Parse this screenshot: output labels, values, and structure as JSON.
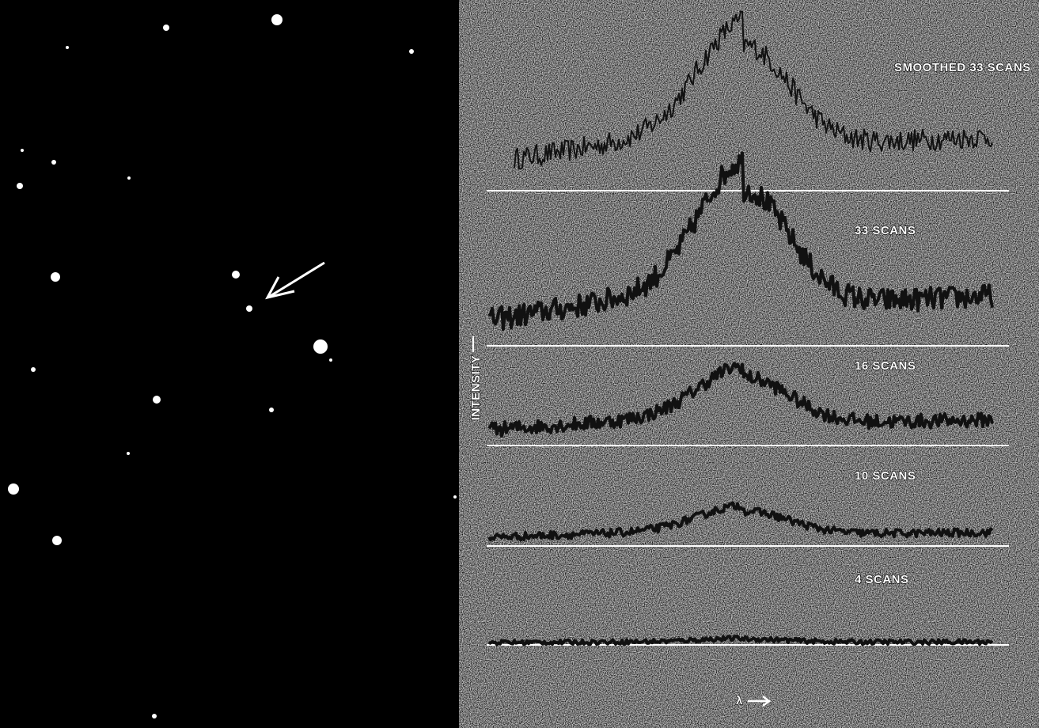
{
  "spectra": {
    "traces": [
      {
        "label": "SMOOTHED 33 SCANS"
      },
      {
        "label": "33 SCANS"
      },
      {
        "label": "16 SCANS"
      },
      {
        "label": "10 SCANS"
      },
      {
        "label": "4 SCANS"
      }
    ],
    "y_axis_label": "INTENSITY",
    "x_axis_label": "λ"
  }
}
